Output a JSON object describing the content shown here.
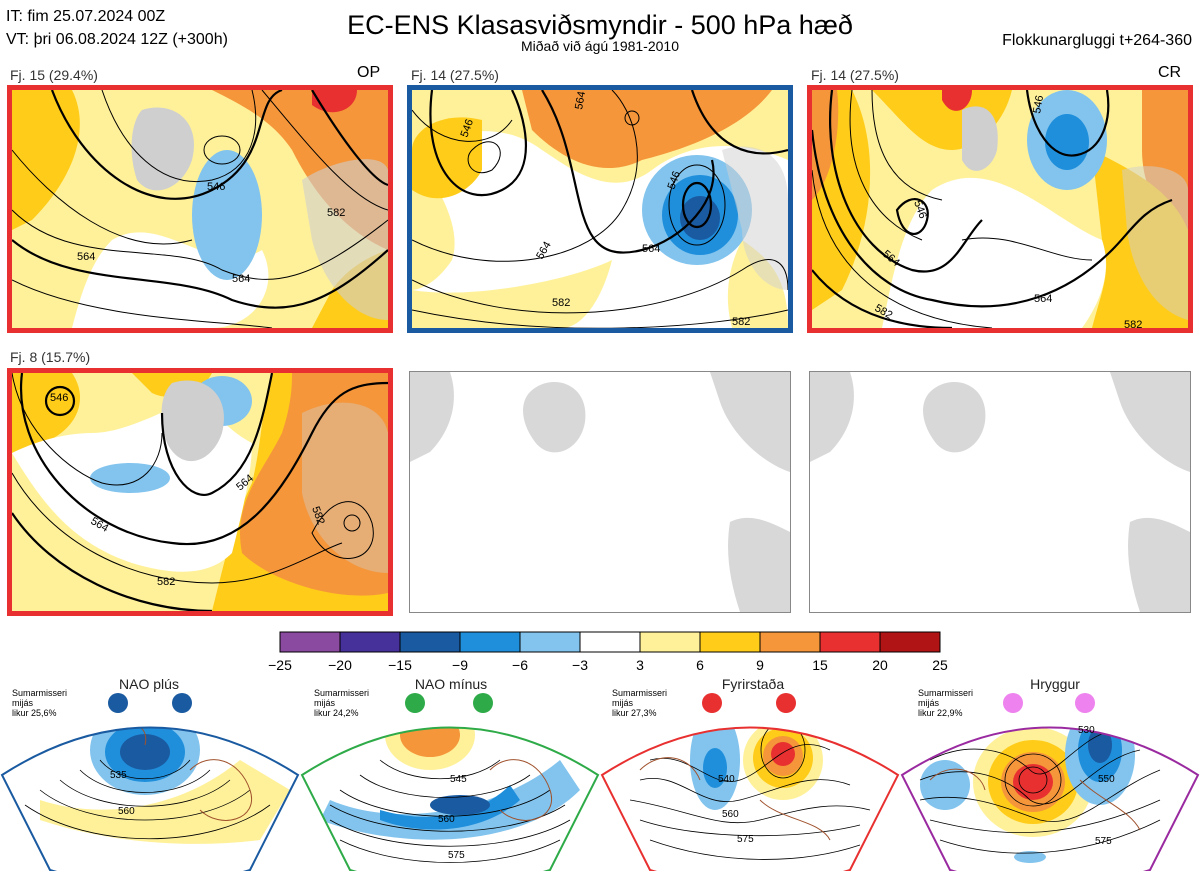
{
  "header": {
    "it": "IT: fim 25.07.2024 00Z",
    "vt": "VT: þri 06.08.2024 12Z  (+300h)",
    "title": "EC-ENS Klasasviðsmyndir - 500 hPa hæð",
    "subtitle": "Miðað við ágú 1981-2010",
    "window": "Flokkunargluggi t+264-360"
  },
  "panels": [
    {
      "label": "Fj. 15 (29.4%)",
      "tag": "OP",
      "frame_color": "#e83030",
      "contours": [
        "546",
        "564",
        "564",
        "582"
      ]
    },
    {
      "label": "Fj. 14 (27.5%)",
      "tag": "",
      "frame_color": "#1a5aa0",
      "contours": [
        "546",
        "564",
        "564",
        "546",
        "564",
        "582",
        "582"
      ]
    },
    {
      "label": "Fj. 14 (27.5%)",
      "tag": "CR",
      "frame_color": "#e83030",
      "contours": [
        "546",
        "546",
        "564",
        "564",
        "582",
        "582"
      ]
    },
    {
      "label": "Fj. 8 (15.7%)",
      "tag": "",
      "frame_color": "#e83030",
      "contours": [
        "546",
        "564",
        "564",
        "582",
        "582"
      ]
    }
  ],
  "colorbar": {
    "ticks": [
      "−25",
      "−20",
      "−15",
      "−9",
      "−6",
      "−3",
      "3",
      "6",
      "9",
      "15",
      "20",
      "25"
    ],
    "colors": [
      "#8a4aa0",
      "#46309a",
      "#1a5aa0",
      "#1f8fdc",
      "#82c4ee",
      "#ffffff",
      "#fff19a",
      "#ffcc1a",
      "#f5963a",
      "#e83030",
      "#b01414"
    ]
  },
  "regimes": [
    {
      "title": "NAO plús",
      "note": [
        "Sumarmisseri",
        "mijás",
        "likur 25,6%"
      ],
      "color": "#1a5aa0",
      "contours": [
        "535",
        "560"
      ]
    },
    {
      "title": "NAO mínus",
      "note": [
        "Sumarmisseri",
        "mijás",
        "likur 24,2%"
      ],
      "color": "#2eab48",
      "contours": [
        "545",
        "560",
        "575"
      ]
    },
    {
      "title": "Fyrirstaða",
      "note": [
        "Sumarmisseri",
        "mijás",
        "likur 27,3%"
      ],
      "color": "#e83030",
      "contours": [
        "540",
        "560",
        "575"
      ]
    },
    {
      "title": "Hryggur",
      "note": [
        "Sumarmisseri",
        "mijás",
        "likur 22,9%"
      ],
      "color": "#9a2aa0",
      "contours": [
        "530",
        "550",
        "575"
      ]
    }
  ]
}
